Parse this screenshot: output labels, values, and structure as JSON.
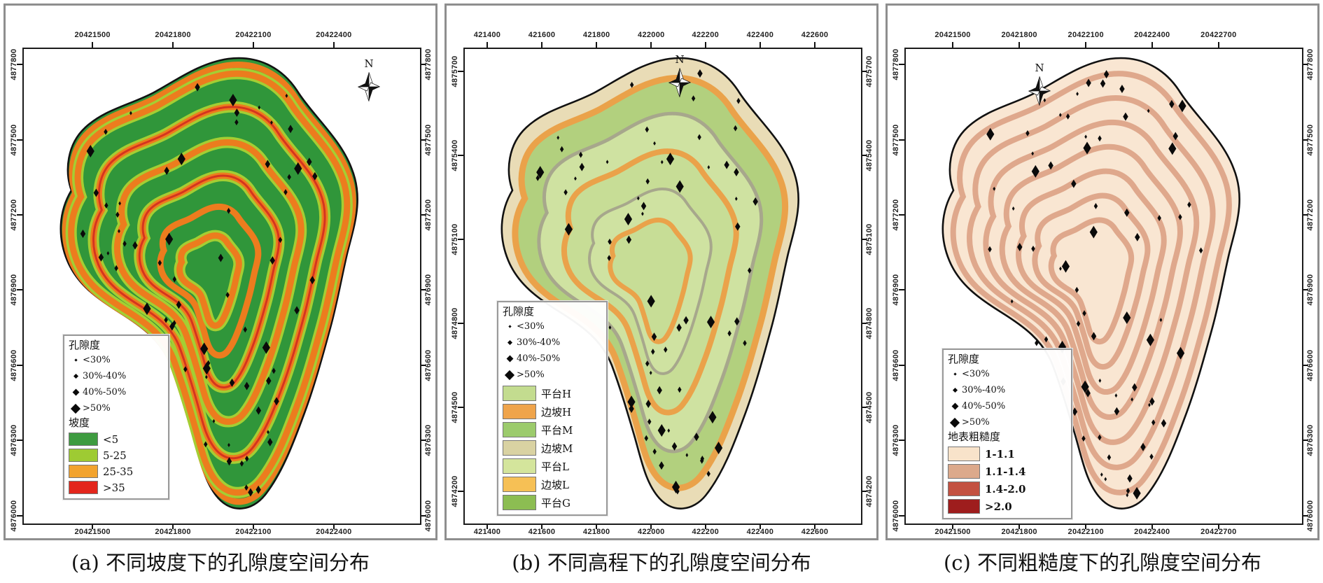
{
  "panels": [
    {
      "id": "a",
      "caption": "(a) 不同坡度下的孔隙度空间分布",
      "north_label": "N",
      "x_axis_labels": [
        "20421500",
        "20421800",
        "20422100",
        "20422400"
      ],
      "y_axis_labels": [
        "4877800",
        "4877500",
        "4877200",
        "4876900",
        "4876600",
        "4876300",
        "4876000"
      ],
      "legend": {
        "points_title": "孔隙度",
        "points": [
          "<30%",
          "30%-40%",
          "40%-50%",
          ">50%"
        ],
        "classes_title": "坡度",
        "classes": [
          {
            "label": "<5",
            "color": "#3e9b40"
          },
          {
            "label": "5-25",
            "color": "#9ecb33"
          },
          {
            "label": "25-35",
            "color": "#f2a32e"
          },
          {
            "label": ">35",
            "color": "#e3261c"
          }
        ]
      },
      "map_colors": {
        "outline": "#111111",
        "base": "#30963a",
        "band_core": "#ec7c1e",
        "band_halo": "#a4ce33",
        "band_accent": "#d6341f",
        "point": "#0a0a0a"
      }
    },
    {
      "id": "b",
      "caption": "(b) 不同高程下的孔隙度空间分布",
      "north_label": "N",
      "x_axis_labels": [
        "421400",
        "421600",
        "421800",
        "422000",
        "422200",
        "422400",
        "422600"
      ],
      "y_axis_labels": [
        "4875700",
        "4875400",
        "4875100",
        "4874800",
        "4874500",
        "4874200"
      ],
      "legend": {
        "points_title": "孔隙度",
        "points": [
          "<30%",
          "30%-40%",
          "40%-50%",
          ">50%"
        ],
        "classes_title": "",
        "classes": [
          {
            "label": "平台H",
            "color": "#c3dc8f"
          },
          {
            "label": "边坡H",
            "color": "#efa44b"
          },
          {
            "label": "平台M",
            "color": "#9ccb6c"
          },
          {
            "label": "边坡M",
            "color": "#d9d2a2"
          },
          {
            "label": "平台L",
            "color": "#d4e59c"
          },
          {
            "label": "边坡L",
            "color": "#f6c055"
          },
          {
            "label": "平台G",
            "color": "#8cbd52"
          }
        ]
      },
      "map_colors": {
        "outline": "#111111",
        "base": "#e9dcb6",
        "zone_green": "#b2d07e",
        "zone_pale": "#cfe2a1",
        "zone_mid": "#c7dd96",
        "band_core": "#eaa24a",
        "boundary": "#a7a78c",
        "point": "#0a0a0a"
      }
    },
    {
      "id": "c",
      "caption": "(c) 不同粗糙度下的孔隙度空间分布",
      "north_label": "N",
      "x_axis_labels": [
        "20421500",
        "20421800",
        "20422100",
        "20422400",
        "20422700"
      ],
      "y_axis_labels": [
        "4877800",
        "4877500",
        "4877200",
        "4876900",
        "4876600",
        "4876300",
        "4876000"
      ],
      "legend": {
        "points_title": "孔隙度",
        "points": [
          "<30%",
          "30%-40%",
          "40%-50%",
          ">50%"
        ],
        "classes_title": "地表粗糙度",
        "classes": [
          {
            "label": "1-1.1",
            "color": "#f8e3ca"
          },
          {
            "label": "1.1-1.4",
            "color": "#dca98b"
          },
          {
            "label": "1.4-2.0",
            "color": "#c35141"
          },
          {
            "label": ">2.0",
            "color": "#9e1d1d"
          }
        ]
      },
      "map_colors": {
        "outline": "#111111",
        "base": "#f9e6d2",
        "band_core": "#dfa88c",
        "point": "#0a0a0a"
      }
    }
  ]
}
